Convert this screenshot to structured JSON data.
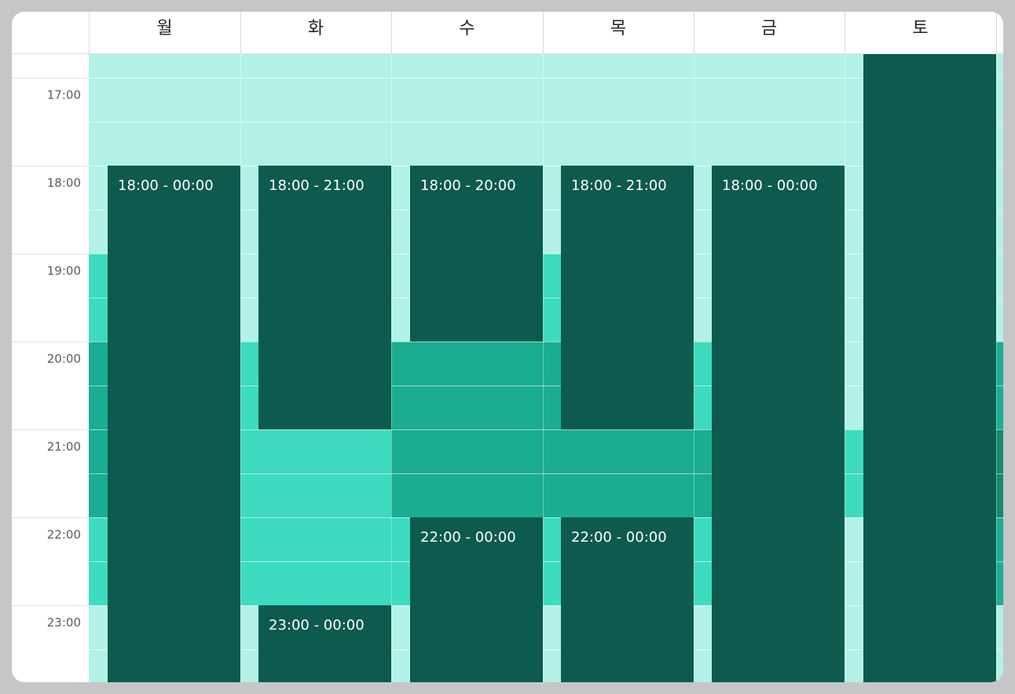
{
  "days": [
    "월",
    "화",
    "수",
    "목",
    "금",
    "토"
  ],
  "times": [
    "17:00",
    "18:00",
    "19:00",
    "20:00",
    "21:00",
    "22:00",
    "23:00"
  ],
  "colors": {
    "level1": "#b3f1e6",
    "level2": "#3ddbbf",
    "level3": "#1aad91",
    "level4": "#128a72",
    "event": "#0d5a4e"
  },
  "events": [
    {
      "day": 0,
      "label": "18:00 - 00:00"
    },
    {
      "day": 1,
      "label": "18:00 - 21:00"
    },
    {
      "day": 1,
      "label": "23:00 - 00:00"
    },
    {
      "day": 2,
      "label": "18:00 - 20:00"
    },
    {
      "day": 2,
      "label": "22:00 - 00:00"
    },
    {
      "day": 3,
      "label": "18:00 - 21:00"
    },
    {
      "day": 3,
      "label": "22:00 - 00:00"
    },
    {
      "day": 4,
      "label": "18:00 - 00:00"
    },
    {
      "day": 5,
      "label": ""
    }
  ]
}
